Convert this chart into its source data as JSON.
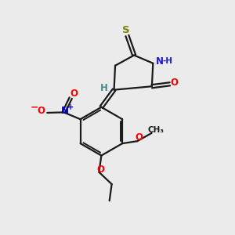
{
  "bg_color": "#ebebeb",
  "bond_color": "#1a1a1a",
  "S_color": "#808000",
  "N_color": "#1a1acd",
  "O_color": "#ff0000",
  "NO_N_color": "#0000cd",
  "teal_color": "#4a8888",
  "lw": 1.6,
  "lw_dbl": 1.4,
  "figsize": [
    3.0,
    3.0
  ],
  "dpi": 100,
  "xlim": [
    0,
    10
  ],
  "ylim": [
    0,
    10
  ]
}
